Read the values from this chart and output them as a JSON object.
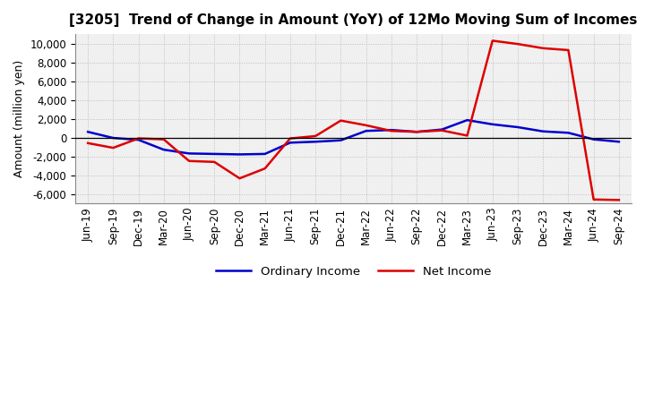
{
  "title": "[3205]  Trend of Change in Amount (YoY) of 12Mo Moving Sum of Incomes",
  "ylabel": "Amount (million yen)",
  "background_color": "#ffffff",
  "plot_bg_color": "#f0f0f0",
  "grid_color": "#bbbbbb",
  "x_labels": [
    "Jun-19",
    "Sep-19",
    "Dec-19",
    "Mar-20",
    "Jun-20",
    "Sep-20",
    "Dec-20",
    "Mar-21",
    "Jun-21",
    "Sep-21",
    "Dec-21",
    "Mar-22",
    "Jun-22",
    "Sep-22",
    "Dec-22",
    "Mar-23",
    "Jun-23",
    "Sep-23",
    "Dec-23",
    "Mar-24",
    "Jun-24",
    "Sep-24"
  ],
  "ordinary_income": [
    600,
    -50,
    -250,
    -1300,
    -1700,
    -1750,
    -1800,
    -1750,
    -550,
    -450,
    -300,
    700,
    800,
    600,
    850,
    1850,
    1400,
    1100,
    650,
    500,
    -200,
    -450
  ],
  "net_income": [
    -600,
    -1100,
    -100,
    -200,
    -2500,
    -2600,
    -4350,
    -3300,
    -100,
    150,
    1800,
    1300,
    700,
    600,
    750,
    200,
    10300,
    9950,
    9500,
    9300,
    -6600,
    -6650
  ],
  "ordinary_color": "#0000cc",
  "net_color": "#dd0000",
  "ylim": [
    -7000,
    11000
  ],
  "yticks": [
    -6000,
    -4000,
    -2000,
    0,
    2000,
    4000,
    6000,
    8000,
    10000
  ],
  "legend_ordinary": "Ordinary Income",
  "legend_net": "Net Income",
  "line_width": 1.8,
  "title_fontsize": 11,
  "axis_fontsize": 9,
  "tick_fontsize": 8.5
}
